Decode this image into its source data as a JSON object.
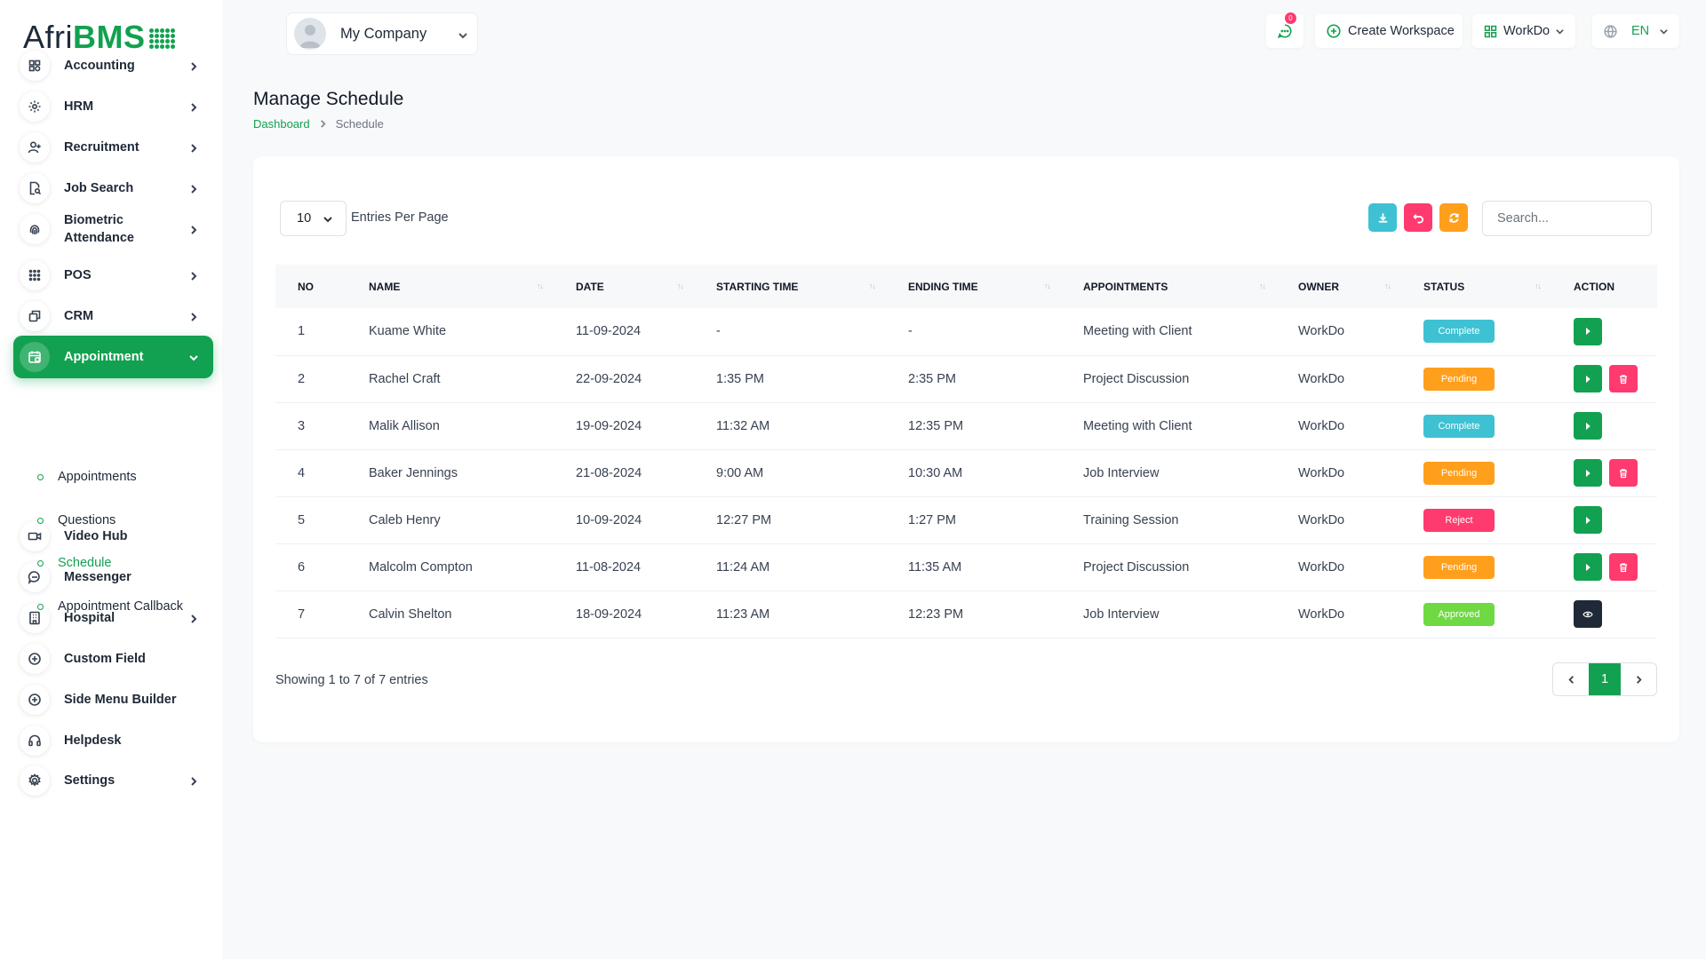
{
  "brand": {
    "name_part1": "Afri",
    "name_part2": "BMS"
  },
  "header": {
    "company": "My Company",
    "notification_count": "0",
    "create_workspace": "Create Workspace",
    "workspace": "WorkDo",
    "language": "EN"
  },
  "sidebar": {
    "items": [
      {
        "label": "Accounting",
        "icon": "grid-icon",
        "has_arrow": true
      },
      {
        "label": "HRM",
        "icon": "hrm-icon",
        "has_arrow": true
      },
      {
        "label": "Recruitment",
        "icon": "user-plus-icon",
        "has_arrow": true
      },
      {
        "label": "Job Search",
        "icon": "file-search-icon",
        "has_arrow": true
      },
      {
        "label": "Biometric Attendance",
        "icon": "fingerprint-icon",
        "has_arrow": true
      },
      {
        "label": "POS",
        "icon": "dots-grid-icon",
        "has_arrow": true
      },
      {
        "label": "CRM",
        "icon": "layers-icon",
        "has_arrow": true
      },
      {
        "label": "Appointment",
        "icon": "calendar-icon",
        "has_arrow": true,
        "active": true
      },
      {
        "label": "Video Hub",
        "icon": "video-icon",
        "has_arrow": false
      },
      {
        "label": "Messenger",
        "icon": "message-icon",
        "has_arrow": false
      },
      {
        "label": "Hospital",
        "icon": "building-icon",
        "has_arrow": true
      },
      {
        "label": "Custom Field",
        "icon": "plus-circle-icon",
        "has_arrow": false
      },
      {
        "label": "Side Menu Builder",
        "icon": "plus-circle-icon",
        "has_arrow": false
      },
      {
        "label": "Helpdesk",
        "icon": "headset-icon",
        "has_arrow": false
      },
      {
        "label": "Settings",
        "icon": "gear-icon",
        "has_arrow": true
      }
    ],
    "submenu": [
      {
        "label": "Appointments"
      },
      {
        "label": "Questions"
      },
      {
        "label": "Schedule",
        "current": true
      },
      {
        "label": "Appointment Callback"
      }
    ]
  },
  "page": {
    "title": "Manage Schedule",
    "breadcrumb": [
      "Dashboard",
      "Schedule"
    ]
  },
  "table_controls": {
    "entries_value": "10",
    "entries_label": "Entries Per Page",
    "search_placeholder": "Search..."
  },
  "table": {
    "headers": [
      "NO",
      "NAME",
      "DATE",
      "STARTING TIME",
      "ENDING TIME",
      "APPOINTMENTS",
      "OWNER",
      "STATUS",
      "ACTION"
    ],
    "rows": [
      {
        "no": "1",
        "name": "Kuame White",
        "date": "11-09-2024",
        "start": "-",
        "end": "-",
        "appointment": "Meeting with Client",
        "owner": "WorkDo",
        "status": "Complete",
        "actions": [
          "play"
        ]
      },
      {
        "no": "2",
        "name": "Rachel Craft",
        "date": "22-09-2024",
        "start": "1:35 PM",
        "end": "2:35 PM",
        "appointment": "Project Discussion",
        "owner": "WorkDo",
        "status": "Pending",
        "actions": [
          "play",
          "delete"
        ]
      },
      {
        "no": "3",
        "name": "Malik Allison",
        "date": "19-09-2024",
        "start": "11:32 AM",
        "end": "12:35 PM",
        "appointment": "Meeting with Client",
        "owner": "WorkDo",
        "status": "Complete",
        "actions": [
          "play"
        ]
      },
      {
        "no": "4",
        "name": "Baker Jennings",
        "date": "21-08-2024",
        "start": "9:00 AM",
        "end": "10:30 AM",
        "appointment": "Job Interview",
        "owner": "WorkDo",
        "status": "Pending",
        "actions": [
          "play",
          "delete"
        ]
      },
      {
        "no": "5",
        "name": "Caleb Henry",
        "date": "10-09-2024",
        "start": "12:27 PM",
        "end": "1:27 PM",
        "appointment": "Training Session",
        "owner": "WorkDo",
        "status": "Reject",
        "actions": [
          "play"
        ]
      },
      {
        "no": "6",
        "name": "Malcolm Compton",
        "date": "11-08-2024",
        "start": "11:24 AM",
        "end": "11:35 AM",
        "appointment": "Project Discussion",
        "owner": "WorkDo",
        "status": "Pending",
        "actions": [
          "play",
          "delete"
        ]
      },
      {
        "no": "7",
        "name": "Calvin Shelton",
        "date": "18-09-2024",
        "start": "11:23 AM",
        "end": "12:23 PM",
        "appointment": "Job Interview",
        "owner": "WorkDo",
        "status": "Approved",
        "actions": [
          "view"
        ]
      }
    ]
  },
  "status_colors": {
    "Complete": "#3ec1d3",
    "Pending": "#ff9f1c",
    "Reject": "#ff3a6e",
    "Approved": "#6fd943"
  },
  "colors": {
    "accent": "#12a150",
    "info": "#3ec1d3",
    "danger": "#ff3a6e",
    "warning": "#ff9f1c",
    "dark": "#1f2937"
  },
  "footer": {
    "showing": "Showing 1 to 7 of 7 entries",
    "current_page": "1"
  }
}
